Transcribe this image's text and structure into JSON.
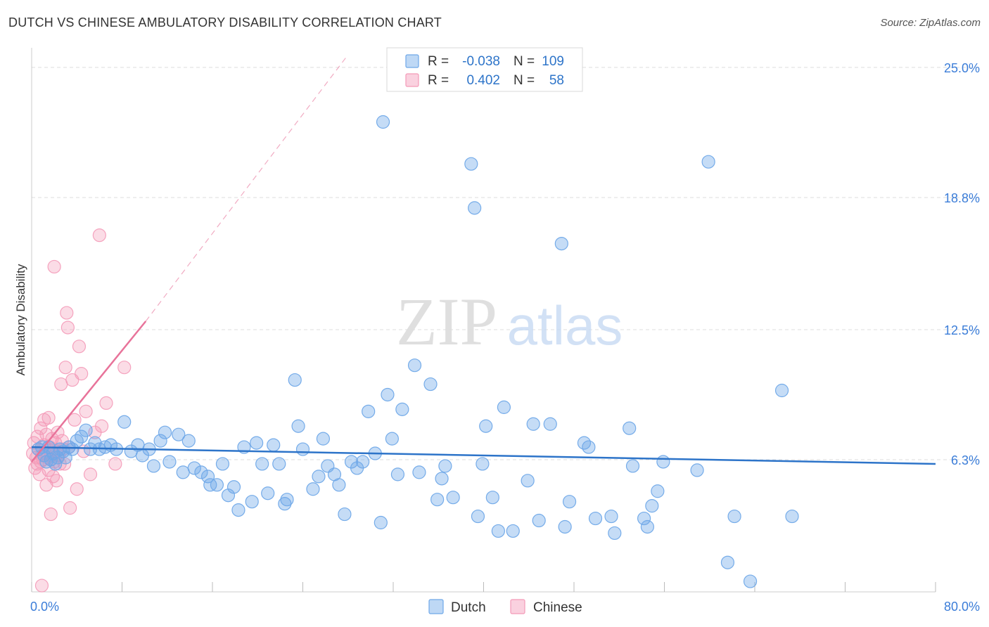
{
  "title": "DUTCH VS CHINESE AMBULATORY DISABILITY CORRELATION CHART",
  "source": "Source: ZipAtlas.com",
  "watermark": {
    "zip": "ZIP",
    "atlas": "atlas"
  },
  "colors": {
    "dutch": "#6fa8e8",
    "dutch_line": "#2d74c9",
    "chinese": "#f49ab8",
    "chinese_line": "#e8739a",
    "tick_label": "#3b7dd8",
    "grid": "#dddddd"
  },
  "legend": {
    "rows": [
      {
        "r_label": "R =",
        "r_value": "-0.038",
        "n_label": "N =",
        "n_value": "109"
      },
      {
        "r_label": "R =",
        "r_value": "0.402",
        "n_label": "N =",
        "n_value": "58"
      }
    ]
  },
  "chart_data": {
    "type": "scatter",
    "title": "DUTCH VS CHINESE AMBULATORY DISABILITY CORRELATION CHART",
    "xlabel": "",
    "ylabel": "Ambulatory Disability",
    "xlim": [
      0,
      80
    ],
    "ylim": [
      0,
      25.6
    ],
    "x_tick_labels": [
      "0.0%",
      "80.0%"
    ],
    "y_ticks": [
      6.3,
      12.5,
      18.8,
      25.0
    ],
    "y_tick_labels": [
      "6.3%",
      "12.5%",
      "18.8%",
      "25.0%"
    ],
    "grid": true,
    "legend_position": "top-center",
    "bottom_legend": [
      "Dutch",
      "Chinese"
    ],
    "series": [
      {
        "name": "Dutch",
        "r": -0.038,
        "n": 109,
        "trend": {
          "x0": 0,
          "y0": 6.9,
          "x1": 80,
          "y1": 6.1
        },
        "points": [
          [
            0.6,
            6.8
          ],
          [
            0.9,
            6.9
          ],
          [
            1.1,
            6.5
          ],
          [
            1.3,
            6.2
          ],
          [
            1.5,
            6.9
          ],
          [
            1.7,
            6.3
          ],
          [
            1.9,
            6.6
          ],
          [
            2.1,
            6.1
          ],
          [
            2.3,
            6.4
          ],
          [
            2.5,
            6.8
          ],
          [
            2.8,
            6.7
          ],
          [
            3.0,
            6.4
          ],
          [
            3.3,
            6.9
          ],
          [
            3.6,
            6.8
          ],
          [
            4.0,
            7.2
          ],
          [
            4.4,
            7.4
          ],
          [
            4.8,
            7.7
          ],
          [
            5.2,
            6.8
          ],
          [
            5.6,
            7.1
          ],
          [
            6.0,
            6.8
          ],
          [
            6.5,
            6.9
          ],
          [
            7.0,
            7.0
          ],
          [
            7.5,
            6.8
          ],
          [
            8.2,
            8.1
          ],
          [
            8.8,
            6.7
          ],
          [
            9.4,
            7.0
          ],
          [
            9.8,
            6.5
          ],
          [
            10.4,
            6.8
          ],
          [
            10.8,
            6.0
          ],
          [
            11.4,
            7.2
          ],
          [
            11.8,
            7.6
          ],
          [
            12.2,
            6.2
          ],
          [
            13.0,
            7.5
          ],
          [
            13.4,
            5.7
          ],
          [
            13.9,
            7.2
          ],
          [
            14.4,
            5.9
          ],
          [
            15.0,
            5.7
          ],
          [
            15.6,
            5.5
          ],
          [
            15.8,
            5.1
          ],
          [
            16.4,
            5.1
          ],
          [
            16.9,
            6.1
          ],
          [
            17.4,
            4.6
          ],
          [
            17.9,
            5.0
          ],
          [
            18.3,
            3.9
          ],
          [
            18.8,
            6.9
          ],
          [
            19.5,
            4.3
          ],
          [
            19.9,
            7.1
          ],
          [
            20.4,
            6.1
          ],
          [
            20.9,
            4.7
          ],
          [
            21.4,
            7.0
          ],
          [
            21.9,
            6.1
          ],
          [
            22.4,
            4.2
          ],
          [
            22.6,
            4.4
          ],
          [
            23.3,
            10.1
          ],
          [
            23.6,
            7.9
          ],
          [
            24.0,
            6.8
          ],
          [
            24.9,
            4.9
          ],
          [
            25.4,
            5.5
          ],
          [
            25.8,
            7.3
          ],
          [
            26.2,
            6.0
          ],
          [
            26.8,
            5.6
          ],
          [
            27.2,
            5.1
          ],
          [
            27.7,
            3.7
          ],
          [
            28.3,
            6.2
          ],
          [
            28.8,
            5.9
          ],
          [
            29.3,
            6.2
          ],
          [
            29.8,
            8.6
          ],
          [
            30.4,
            6.6
          ],
          [
            30.9,
            3.3
          ],
          [
            31.1,
            22.4
          ],
          [
            31.5,
            9.4
          ],
          [
            31.9,
            7.3
          ],
          [
            32.4,
            5.6
          ],
          [
            32.8,
            8.7
          ],
          [
            33.9,
            10.8
          ],
          [
            34.3,
            5.7
          ],
          [
            35.3,
            9.9
          ],
          [
            35.9,
            4.4
          ],
          [
            36.3,
            5.4
          ],
          [
            36.6,
            6.0
          ],
          [
            37.3,
            4.5
          ],
          [
            38.9,
            20.4
          ],
          [
            39.2,
            18.3
          ],
          [
            39.5,
            3.6
          ],
          [
            39.9,
            6.1
          ],
          [
            40.2,
            7.9
          ],
          [
            40.8,
            4.5
          ],
          [
            41.3,
            2.9
          ],
          [
            41.8,
            8.8
          ],
          [
            42.6,
            2.9
          ],
          [
            43.9,
            5.3
          ],
          [
            44.4,
            8.0
          ],
          [
            44.9,
            3.4
          ],
          [
            45.9,
            8.0
          ],
          [
            46.9,
            16.6
          ],
          [
            47.2,
            3.1
          ],
          [
            47.6,
            4.3
          ],
          [
            48.9,
            7.1
          ],
          [
            49.3,
            6.9
          ],
          [
            49.9,
            3.5
          ],
          [
            51.3,
            3.6
          ],
          [
            51.6,
            2.8
          ],
          [
            52.9,
            7.8
          ],
          [
            53.2,
            6.0
          ],
          [
            54.2,
            3.5
          ],
          [
            54.5,
            3.1
          ],
          [
            54.9,
            4.1
          ],
          [
            55.4,
            4.8
          ],
          [
            55.9,
            6.2
          ],
          [
            58.9,
            5.8
          ],
          [
            59.9,
            20.5
          ],
          [
            61.6,
            1.4
          ],
          [
            62.2,
            3.6
          ],
          [
            63.6,
            0.5
          ],
          [
            66.4,
            9.6
          ],
          [
            67.3,
            3.6
          ]
        ]
      },
      {
        "name": "Chinese",
        "r": 0.402,
        "n": 58,
        "trend": {
          "x0": 0,
          "y0": 6.2,
          "x1": 10.1,
          "y1": 12.9,
          "extend_to": [
            28.0,
            25.6
          ]
        },
        "points": [
          [
            0.1,
            6.6
          ],
          [
            0.2,
            7.1
          ],
          [
            0.3,
            5.9
          ],
          [
            0.4,
            6.4
          ],
          [
            0.5,
            6.1
          ],
          [
            0.5,
            7.4
          ],
          [
            0.6,
            6.8
          ],
          [
            0.7,
            5.6
          ],
          [
            0.8,
            6.2
          ],
          [
            0.8,
            7.8
          ],
          [
            0.9,
            6.5
          ],
          [
            1.0,
            6.3
          ],
          [
            1.1,
            7.0
          ],
          [
            1.1,
            8.2
          ],
          [
            1.2,
            6.6
          ],
          [
            1.3,
            5.1
          ],
          [
            1.3,
            7.5
          ],
          [
            1.4,
            6.4
          ],
          [
            1.5,
            5.8
          ],
          [
            1.5,
            8.3
          ],
          [
            1.6,
            6.9
          ],
          [
            1.7,
            3.7
          ],
          [
            1.7,
            6.5
          ],
          [
            1.8,
            7.3
          ],
          [
            1.9,
            5.5
          ],
          [
            1.9,
            6.8
          ],
          [
            2.0,
            6.2
          ],
          [
            2.1,
            7.1
          ],
          [
            2.2,
            5.3
          ],
          [
            2.2,
            6.7
          ],
          [
            2.3,
            7.6
          ],
          [
            2.4,
            6.5
          ],
          [
            2.5,
            6.1
          ],
          [
            2.6,
            9.9
          ],
          [
            2.7,
            7.2
          ],
          [
            2.8,
            6.8
          ],
          [
            2.9,
            6.1
          ],
          [
            3.0,
            10.7
          ],
          [
            3.1,
            13.3
          ],
          [
            3.2,
            12.6
          ],
          [
            3.3,
            6.9
          ],
          [
            3.4,
            4.0
          ],
          [
            3.6,
            10.1
          ],
          [
            3.8,
            8.2
          ],
          [
            4.0,
            4.9
          ],
          [
            4.2,
            11.7
          ],
          [
            4.4,
            10.4
          ],
          [
            4.6,
            6.7
          ],
          [
            4.8,
            8.6
          ],
          [
            5.2,
            5.6
          ],
          [
            5.6,
            7.6
          ],
          [
            6.0,
            17.0
          ],
          [
            6.2,
            7.9
          ],
          [
            6.6,
            9.0
          ],
          [
            7.4,
            6.1
          ],
          [
            8.2,
            10.7
          ],
          [
            0.9,
            0.3
          ],
          [
            2.0,
            15.5
          ]
        ]
      }
    ]
  }
}
